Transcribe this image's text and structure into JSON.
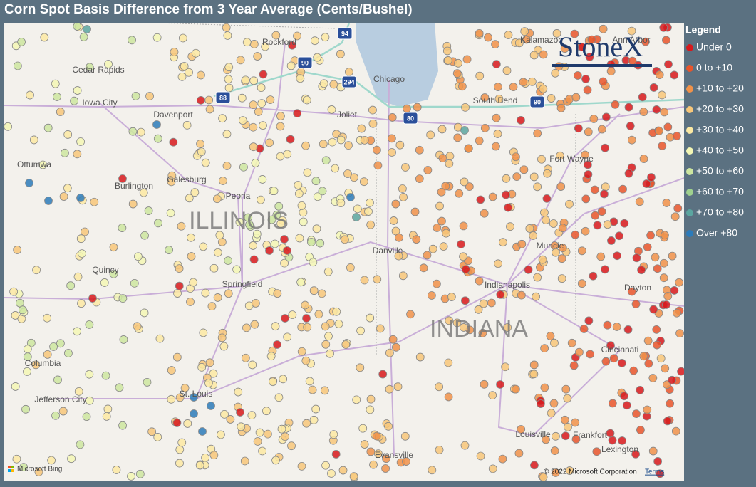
{
  "header": {
    "title": "Corn Spot Basis Difference from 3 Year Average (Cents/Bushel)"
  },
  "legend": {
    "title": "Legend",
    "items": [
      {
        "label": "Under 0",
        "color": "#d7191c"
      },
      {
        "label": "0 to +10",
        "color": "#e8552b"
      },
      {
        "label": "+10 to +20",
        "color": "#f0924a"
      },
      {
        "label": "+20 to +30",
        "color": "#f7c77a"
      },
      {
        "label": "+30 to +40",
        "color": "#fbe9a3"
      },
      {
        "label": "+40 to +50",
        "color": "#f3f7b5"
      },
      {
        "label": "+50 to +60",
        "color": "#cde6a0"
      },
      {
        "label": "+60 to +70",
        "color": "#9fd18e"
      },
      {
        "label": "+70 to +80",
        "color": "#5ba6a0"
      },
      {
        "label": "Over +80",
        "color": "#2b7bba"
      }
    ]
  },
  "logo": "StoneX",
  "map": {
    "cities": [
      "Rockford",
      "Chicago",
      "Joliet",
      "Cedar Rapids",
      "Iowa City",
      "Davenport",
      "Ottumwa",
      "Burlington",
      "Galesburg",
      "Peoria",
      "Quincy",
      "Springfield",
      "Danville",
      "Columbia",
      "Jefferson City",
      "St. Louis",
      "Evansville",
      "Louisville",
      "Frankfort",
      "Lexington",
      "Cincinnati",
      "Dayton",
      "Muncie",
      "Indianapolis",
      "Fort Wayne",
      "South Bend",
      "Kalamazoo",
      "Ann Arbor"
    ],
    "states": [
      "ILLINOIS",
      "INDIANA"
    ],
    "highways": [
      "94",
      "90",
      "294",
      "88",
      "80",
      "90"
    ]
  },
  "attribution": {
    "provider": "Microsoft Bing",
    "copyright": "© 2022 Microsoft Corporation",
    "terms": "Terms"
  }
}
